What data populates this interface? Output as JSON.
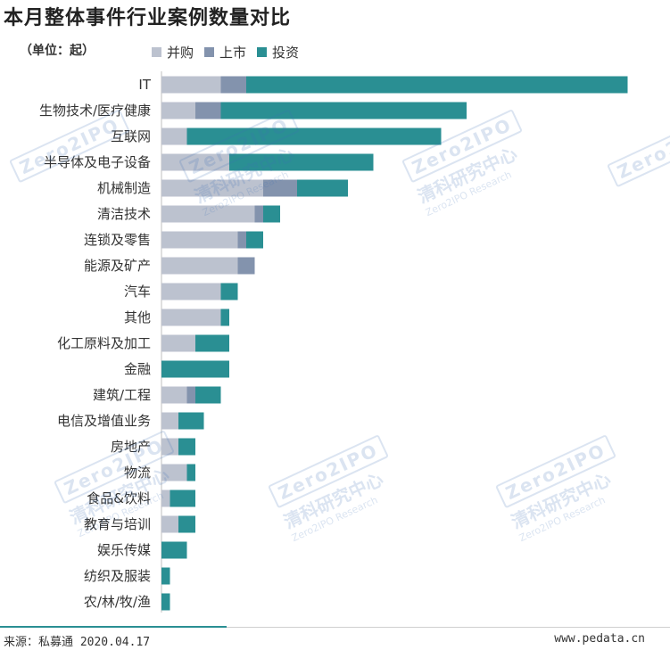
{
  "title": "本月整体事件行业案例数量对比",
  "unit_label": "（单位：起）",
  "footer": {
    "source": "来源：私募通 2020.04.17",
    "site": "www.pedata.cn"
  },
  "watermark": {
    "logo": "Zero2IPO",
    "cn": "清科研究中心",
    "en": "Zero2IPO Research"
  },
  "chart_data": {
    "type": "bar",
    "orientation": "horizontal",
    "stacked": true,
    "title": "本月整体事件行业案例数量对比",
    "xlabel": "",
    "ylabel": "",
    "grid": false,
    "legend_position": "top",
    "categories": [
      "IT",
      "生物技术/医疗健康",
      "互联网",
      "半导体及电子设备",
      "机械制造",
      "清洁技术",
      "连锁及零售",
      "能源及矿产",
      "汽车",
      "其他",
      "化工原料及加工",
      "金融",
      "建筑/工程",
      "电信及增值业务",
      "房地产",
      "物流",
      "食品&饮料",
      "教育与培训",
      "娱乐传媒",
      "纺织及服装",
      "农/林/牧/渔"
    ],
    "series": [
      {
        "name": "并购",
        "color": "#bcc2cf",
        "values": [
          7,
          4,
          3,
          8,
          12,
          11,
          9,
          9,
          7,
          7,
          4,
          0,
          3,
          2,
          2,
          3,
          1,
          2,
          0,
          0,
          0
        ]
      },
      {
        "name": "上市",
        "color": "#8393ad",
        "values": [
          3,
          3,
          0,
          0,
          4,
          1,
          1,
          2,
          0,
          0,
          0,
          0,
          1,
          0,
          0,
          0,
          0,
          0,
          0,
          0,
          0
        ]
      },
      {
        "name": "投资",
        "color": "#2a8f93",
        "values": [
          45,
          29,
          30,
          17,
          6,
          2,
          2,
          0,
          2,
          1,
          4,
          8,
          3,
          3,
          2,
          1,
          3,
          2,
          3,
          1,
          1
        ]
      }
    ]
  }
}
